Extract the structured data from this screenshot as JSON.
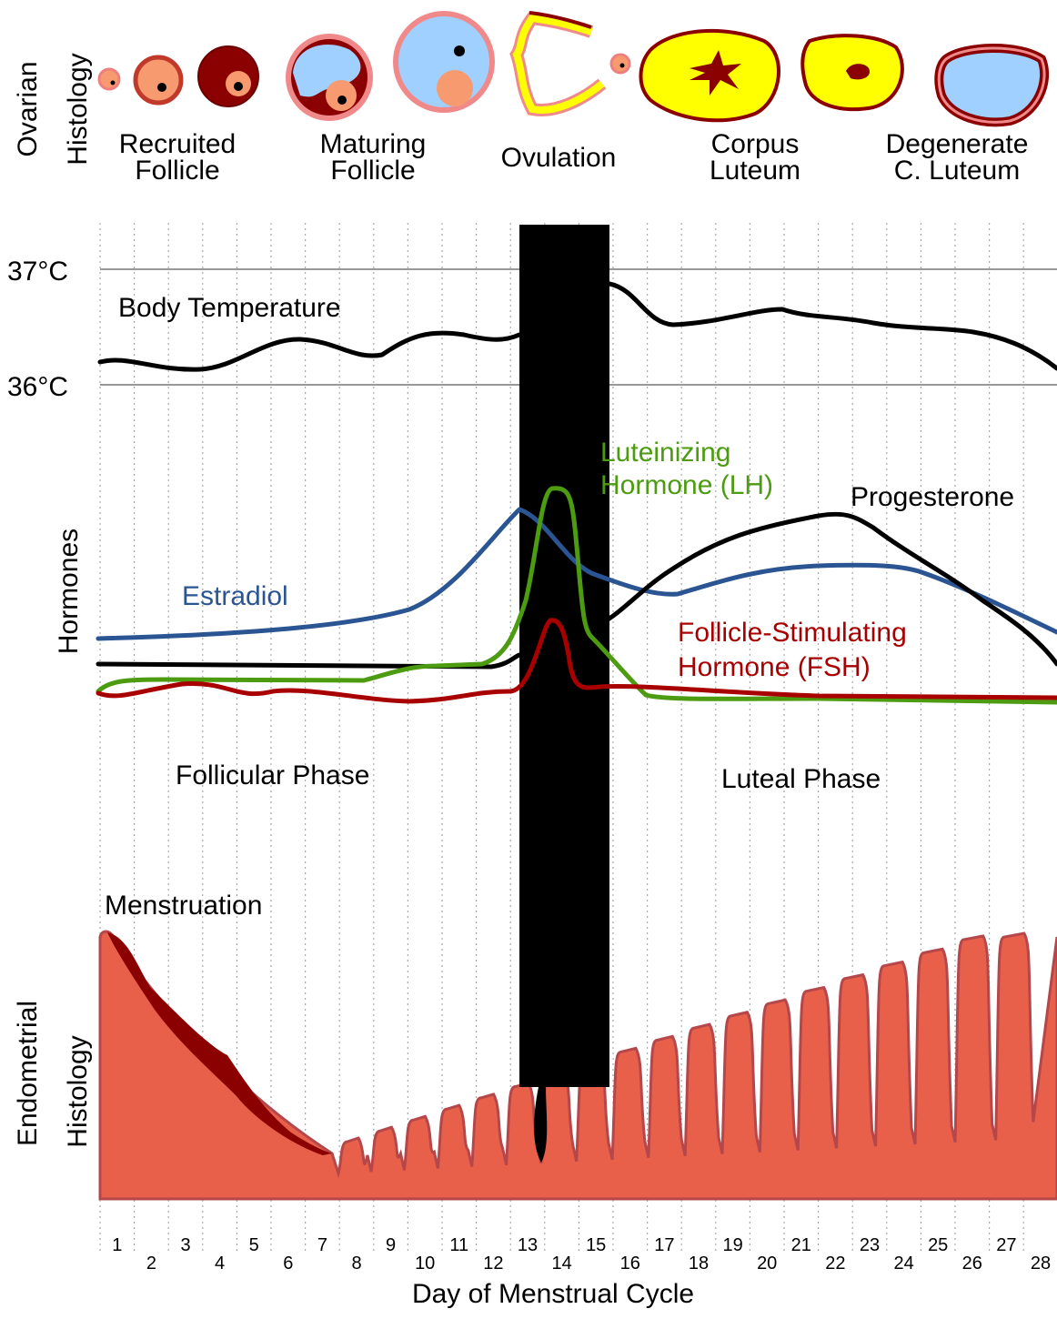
{
  "ovarian_histology": {
    "label": [
      "Ovarian",
      "Histology"
    ],
    "stages": [
      [
        "Recruited",
        "Follicle"
      ],
      [
        "Maturing",
        "Follicle"
      ],
      [
        "Ovulation"
      ],
      [
        "Corpus",
        "Luteum"
      ],
      [
        "Degenerate",
        "C. Luteum"
      ]
    ]
  },
  "temperature": {
    "ticks": [
      "37°C",
      "36°C"
    ],
    "label": "Body Temperature"
  },
  "hormones": {
    "label": "Hormones",
    "lh": [
      "Luteinizing",
      "Hormone (LH)"
    ],
    "progesterone": "Progesterone",
    "estradiol": "Estradiol",
    "fsh": [
      "Follicle-Stimulating",
      "Hormone (FSH)"
    ]
  },
  "phases": [
    "Follicular Phase",
    "Luteal Phase"
  ],
  "endometrium": {
    "label": [
      "Endometrial",
      "Histology"
    ],
    "menstruation": "Menstruation"
  },
  "days": [
    1,
    2,
    3,
    4,
    5,
    6,
    7,
    8,
    9,
    10,
    11,
    12,
    13,
    14,
    15,
    16,
    17,
    18,
    19,
    20,
    21,
    22,
    23,
    24,
    25,
    26,
    27,
    28
  ],
  "x_label": "Day of Menstrual Cycle"
}
